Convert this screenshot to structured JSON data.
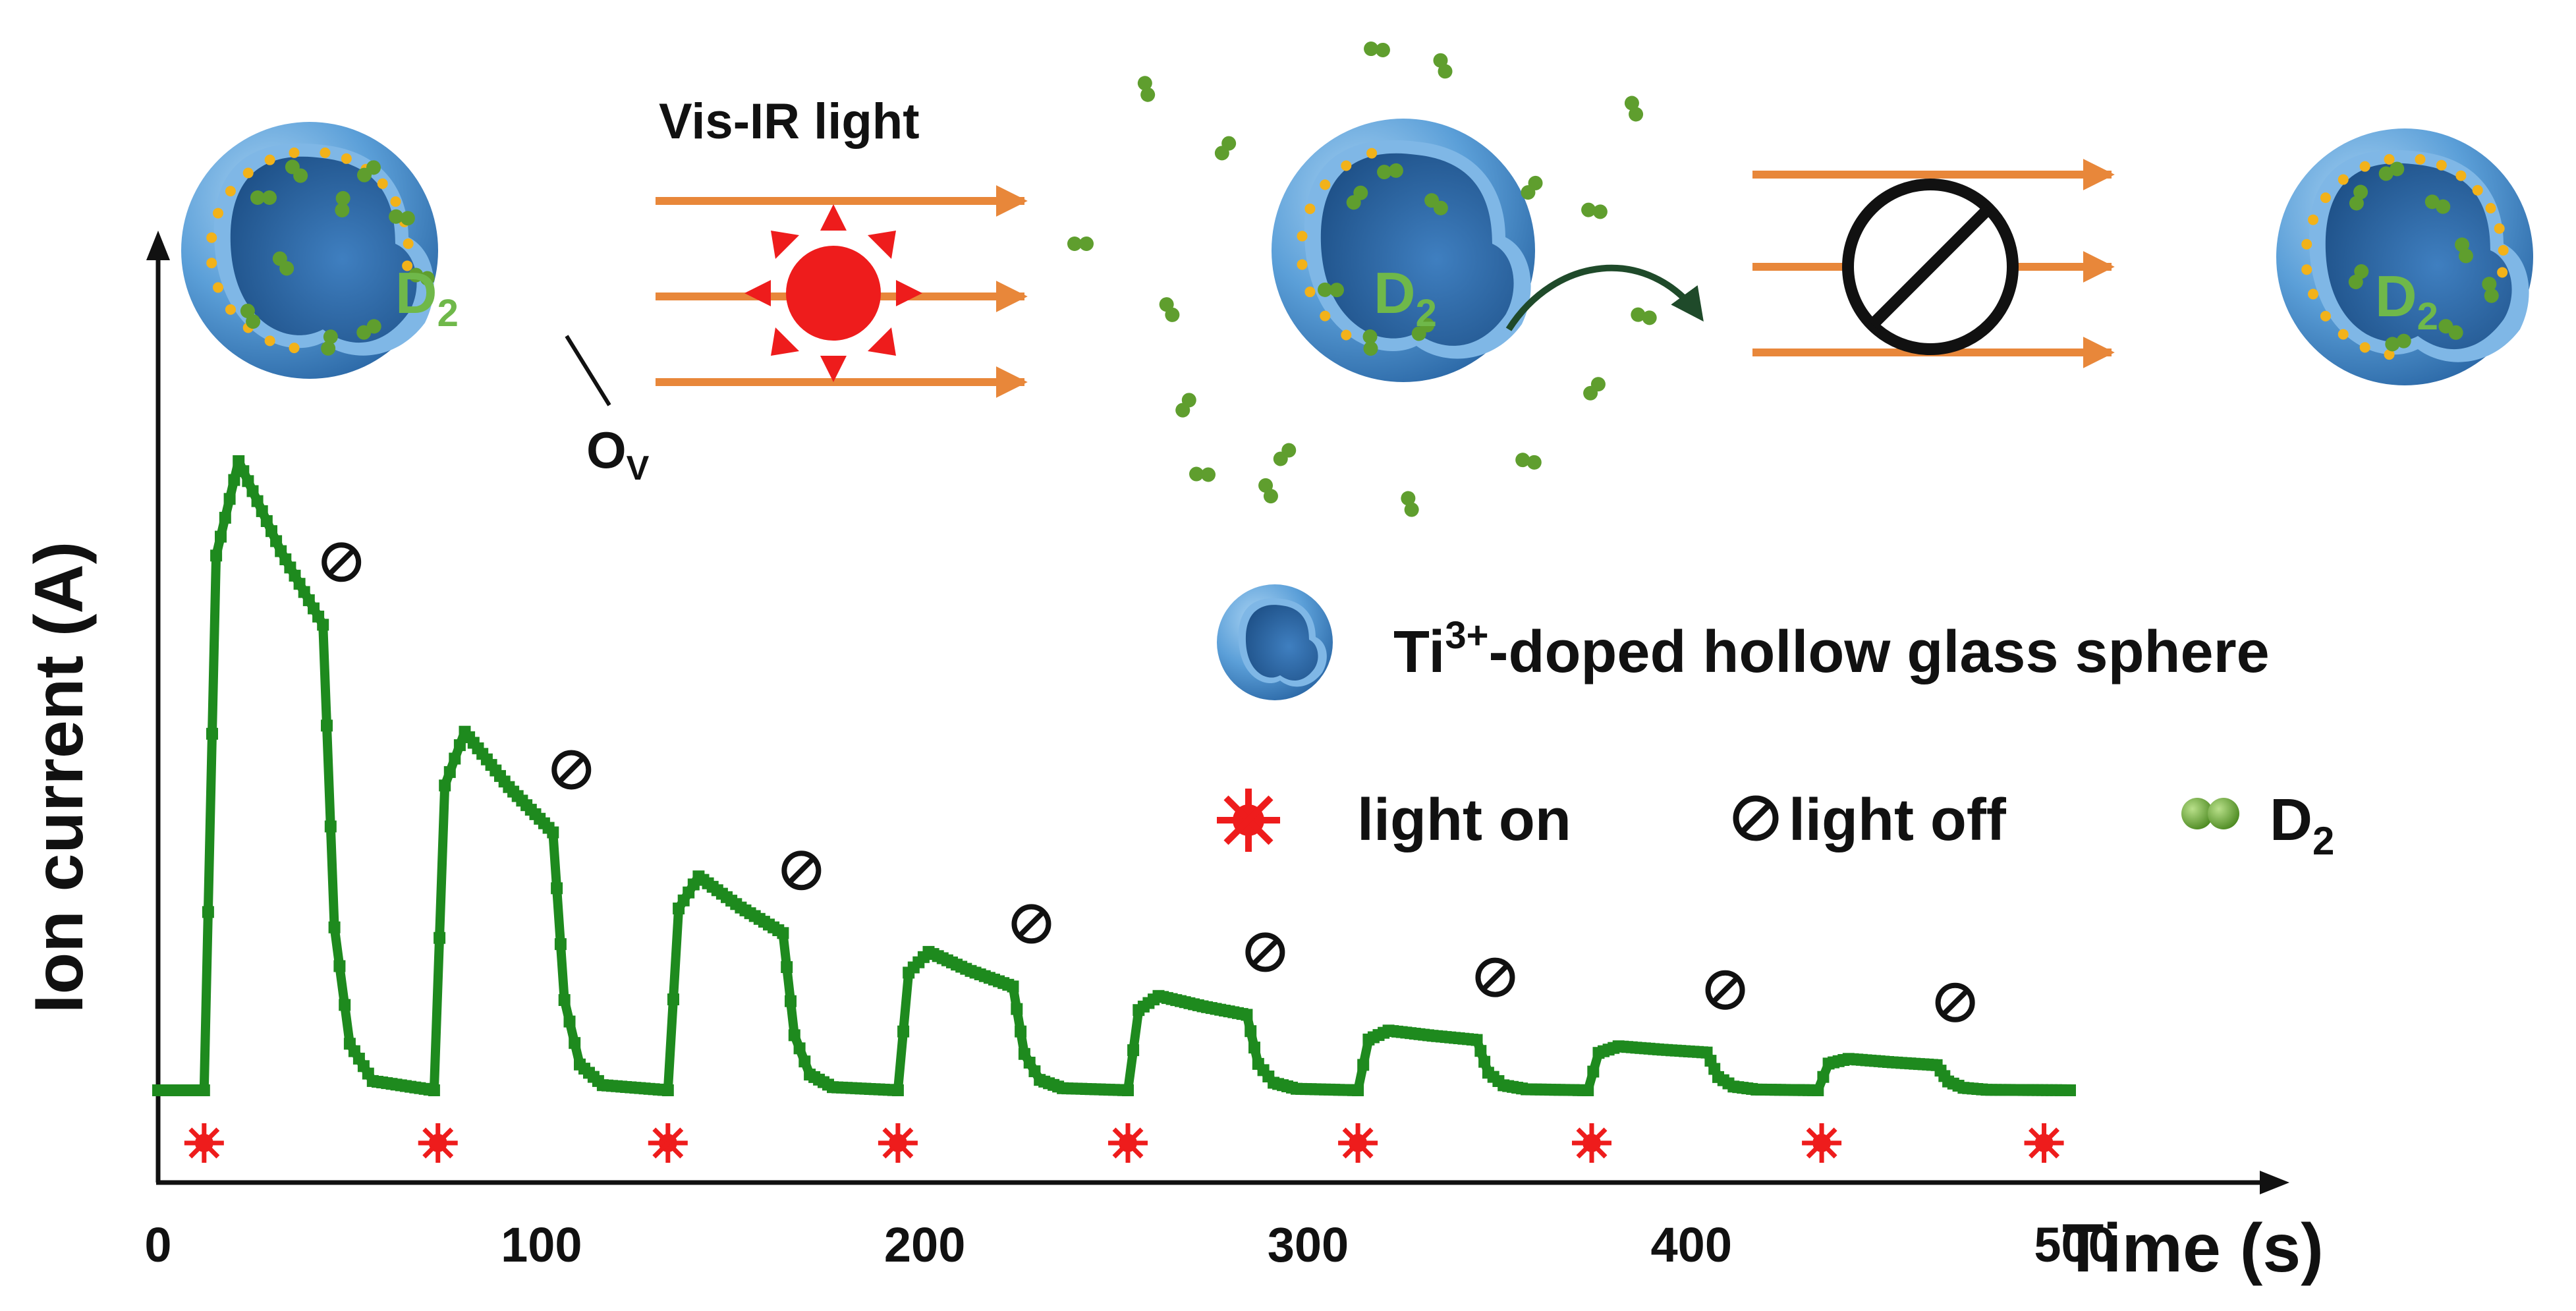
{
  "chart_data": {
    "type": "line",
    "xlabel": "Time (s)",
    "ylabel": "Ion current (A)",
    "xlim": [
      0,
      550
    ],
    "ylim": [
      0,
      1.0
    ],
    "x_ticks": [
      "0",
      "100",
      "200",
      "300",
      "400",
      "500"
    ],
    "x_tick_values": [
      0,
      100,
      200,
      300,
      400,
      500
    ],
    "grid": false,
    "color": "#1e8a1e",
    "baseline": 0.0,
    "cycles": [
      {
        "on": 12,
        "peak_t": 21,
        "peak": 1.0,
        "off": 43,
        "off_value": 0.74
      },
      {
        "on": 72,
        "peak_t": 80,
        "peak": 0.57,
        "off": 103,
        "off_value": 0.41
      },
      {
        "on": 133,
        "peak_t": 141,
        "peak": 0.34,
        "off": 163,
        "off_value": 0.25
      },
      {
        "on": 193,
        "peak_t": 201,
        "peak": 0.22,
        "off": 223,
        "off_value": 0.165
      },
      {
        "on": 253,
        "peak_t": 261,
        "peak": 0.15,
        "off": 284,
        "off_value": 0.12
      },
      {
        "on": 313,
        "peak_t": 321,
        "peak": 0.095,
        "off": 344,
        "off_value": 0.08
      },
      {
        "on": 373,
        "peak_t": 381,
        "peak": 0.07,
        "off": 404,
        "off_value": 0.06
      },
      {
        "on": 433,
        "peak_t": 441,
        "peak": 0.05,
        "off": 464,
        "off_value": 0.04
      }
    ],
    "light_on_markers": [
      12,
      73,
      133,
      193,
      253,
      313,
      374,
      434,
      492
    ],
    "trace_end": 500
  },
  "diagram": {
    "process_label": "Vis-IR light",
    "gas_label": "D",
    "gas_subscript": "2",
    "vacancy_label": "O",
    "vacancy_subscript": "V"
  },
  "legend": {
    "sphere_label_prefix": "Ti",
    "sphere_label_sup": "3+",
    "sphere_label_suffix": "-doped hollow glass sphere",
    "light_on_label": "light on",
    "light_off_label": "light off",
    "gas_label": "D",
    "gas_subscript": "2"
  },
  "colors": {
    "trace": "#1e8a1e",
    "sun": "#ee1c1c",
    "arrow": "#e8873a",
    "sphere_outer": "#5b9fd8",
    "sphere_inner": "#2d6aa8",
    "vacancy_dot": "#f2b21a",
    "molecule": "#5f9e2e"
  }
}
